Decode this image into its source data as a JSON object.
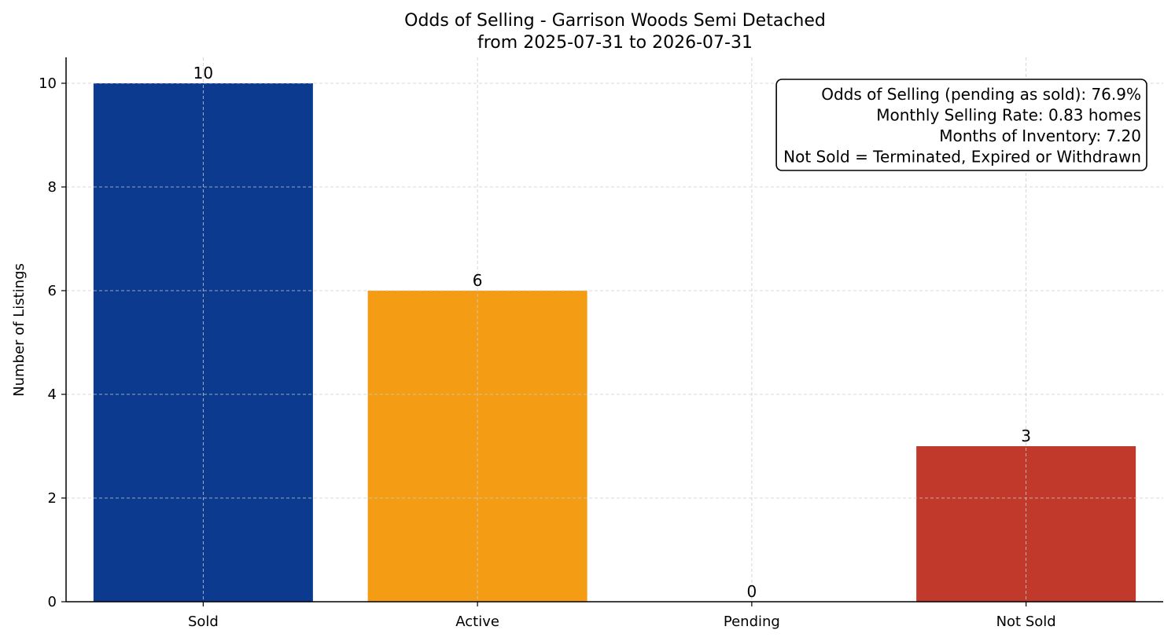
{
  "chart_data": {
    "type": "bar",
    "title": "Odds of Selling - Garrison Woods Semi Detached",
    "subtitle": "from 2025-07-31 to 2026-07-31",
    "xlabel": "",
    "ylabel": "Number of Listings",
    "categories": [
      "Sold",
      "Active",
      "Pending",
      "Not Sold"
    ],
    "values": [
      10,
      6,
      0,
      3
    ],
    "value_labels": [
      "10",
      "6",
      "0",
      "3"
    ],
    "colors": [
      "#0b3a8f",
      "#f39c14",
      "#1f77b4",
      "#c0392b"
    ],
    "ylim": [
      0,
      10.5
    ],
    "yticks": [
      0,
      2,
      4,
      6,
      8,
      10
    ],
    "ytick_labels": [
      "0",
      "2",
      "4",
      "6",
      "8",
      "10"
    ],
    "grid": true,
    "annotation_box": {
      "placement": "top-right",
      "lines": [
        "Odds of Selling (pending as sold): 76.9%",
        "Monthly Selling Rate: 0.83 homes",
        "Months of Inventory: 7.20",
        "Not Sold = Terminated, Expired or Withdrawn"
      ]
    }
  }
}
